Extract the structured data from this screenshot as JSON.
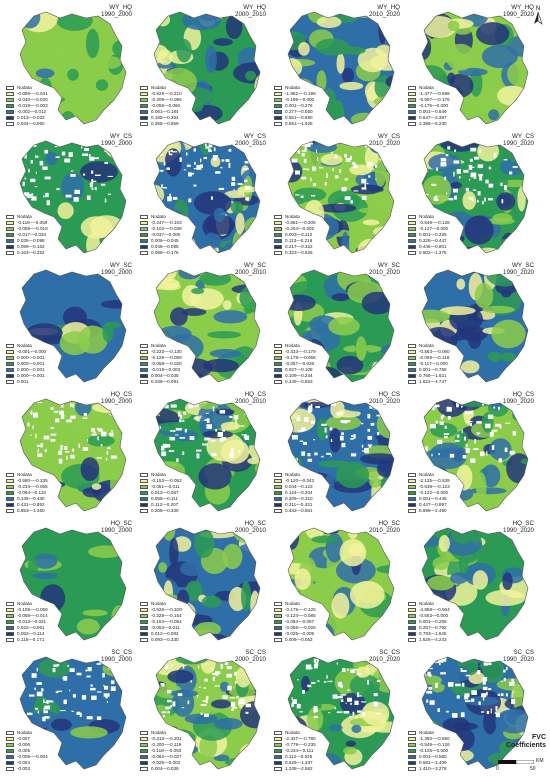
{
  "north_label": "N",
  "fvc_title": "FVC\nCoefficients",
  "scale": {
    "unit": "KM",
    "zero": "0",
    "max": "50"
  },
  "palette": [
    "#ffffff",
    "#f2f29e",
    "#8ccc4b",
    "#2b9a55",
    "#2f6fa8",
    "#23357a"
  ],
  "panels": [
    {
      "name": "WY_HQ",
      "period": "1990_2000",
      "legend": [
        "Nodata",
        "-0.096—-0.041",
        "-0.040—-0.020",
        "-0.019—-0.003",
        "-0.002—0.012",
        "0.013—0.033",
        "0.034—0.060"
      ]
    },
    {
      "name": "WY_HQ",
      "period": "2000_2010",
      "legend": [
        "Nodata",
        "-0.828—-0.210",
        "-0.209—-0.056",
        "-0.055—0.060",
        "0.061—0.184",
        "0.185—0.354",
        "0.355—0.859"
      ]
    },
    {
      "name": "WY_HQ",
      "period": "2010_2020",
      "legend": [
        "Nodata",
        "-1.962—-0.196",
        "-0.195—0.000",
        "0.001—0.276",
        "0.277—0.550",
        "0.551—0.890",
        "0.891—1.928"
      ]
    },
    {
      "name": "WY_HQ",
      "period": "1990_2020",
      "legend": [
        "Nodata",
        "-1.477—-0.598",
        "-0.597—-0.176",
        "-0.175—0.000",
        "0.001—0.646",
        "0.647—2.397",
        "2.398—6.230"
      ]
    },
    {
      "name": "WY_CS",
      "period": "1990_2000",
      "legend": [
        "Nodata",
        "-0.116—-0.059",
        "-0.058—-0.018",
        "-0.017—0.034",
        "0.035—0.098",
        "0.099—0.162",
        "0.163—0.252"
      ]
    },
    {
      "name": "WY_CS",
      "period": "2000_2010",
      "legend": [
        "Nodata",
        "-0.247—-0.103",
        "-0.102—-0.038",
        "-0.037—0.005",
        "0.006—0.045",
        "0.046—0.095",
        "0.096—0.176"
      ]
    },
    {
      "name": "WY_CS",
      "period": "2010_2020",
      "legend": [
        "Nodata",
        "-0.861—-0.205",
        "-0.204—0.002",
        "0.003—0.112",
        "0.113—0.216",
        "0.217—0.322",
        "0.323—0.626"
      ]
    },
    {
      "name": "WY_CS",
      "period": "1990_2020",
      "legend": [
        "Nodata",
        "-0.649—-0.128",
        "-0.127—0.000",
        "0.001—0.225",
        "0.226—0.447",
        "0.448—0.801",
        "0.802—1.375"
      ]
    },
    {
      "name": "WY_SC",
      "period": "1990_2000",
      "legend": [
        "Nodata",
        "-0.001—0.000",
        "0.000—0.001",
        "0.000—0.001",
        "0.000—0.001",
        "0.000—0.001",
        "0.001"
      ]
    },
    {
      "name": "WY_SC",
      "period": "2000_2010",
      "legend": [
        "Nodata",
        "-0.223—-0.130",
        "-0.129—-0.059",
        "-0.058—-0.020",
        "-0.019—0.003",
        "0.004—0.035",
        "0.036—0.091"
      ]
    },
    {
      "name": "WY_SC",
      "period": "2010_2020",
      "legend": [
        "Nodata",
        "-0.433—-0.179",
        "-0.178—-0.058",
        "-0.057—0.026",
        "0.027—0.108",
        "0.109—0.244",
        "0.245—0.553"
      ]
    },
    {
      "name": "WY_SC",
      "period": "1990_2020",
      "legend": [
        "Nodata",
        "-0.563—-0.060",
        "-0.059—-0.118",
        "-0.117—0.000",
        "0.001—0.765",
        "0.766—1.621",
        "1.622—4.747"
      ]
    },
    {
      "name": "HQ_CS",
      "period": "1990_2000",
      "legend": [
        "Nodata",
        "-0.680—-0.235",
        "-0.234—-0.065",
        "-0.064—0.134",
        "0.135—0.430",
        "0.431—0.852",
        "0.853—1.460"
      ]
    },
    {
      "name": "HQ_CS",
      "period": "2000_2010",
      "legend": [
        "Nodata",
        "-0.153—-0.052",
        "-0.051—0.011",
        "0.012—0.057",
        "0.058—0.111",
        "0.112—0.207",
        "0.208—0.330"
      ]
    },
    {
      "name": "HQ_CS",
      "period": "2010_2020",
      "legend": [
        "Nodata",
        "-0.120—0.043",
        "0.044—0.123",
        "0.124—0.204",
        "0.205—0.310",
        "0.311—0.431",
        "0.432—0.561"
      ]
    },
    {
      "name": "HQ_CS",
      "period": "1990_2020",
      "legend": [
        "Nodata",
        "-2.135—-0.539",
        "-0.538—-0.123",
        "-0.122—0.000",
        "0.001—0.446",
        "0.447—0.897",
        "0.898—2.490"
      ]
    },
    {
      "name": "HQ_SC",
      "period": "1990_2000",
      "legend": [
        "Nodata",
        "-0.105—-0.059",
        "-0.058—-0.014",
        "-0.013—0.021",
        "0.022—0.061",
        "0.062—0.114",
        "0.115—0.171"
      ]
    },
    {
      "name": "HQ_SC",
      "period": "2000_2010",
      "legend": [
        "Nodata",
        "-0.625—-0.329",
        "-0.328—-0.154",
        "-0.153—-0.054",
        "-0.053—0.011",
        "0.012—0.092",
        "0.093—0.330"
      ]
    },
    {
      "name": "HQ_SC",
      "period": "2010_2020",
      "legend": [
        "Nodata",
        "-0.175—-0.125",
        "-0.124—-0.085",
        "-0.084—0.057",
        "-0.056—-0.026",
        "-0.025—0.005",
        "0.006—0.052"
      ]
    },
    {
      "name": "HQ_SC",
      "period": "1990_2020",
      "legend": [
        "Nodata",
        "-4.858—-0.564",
        "-0.563—0.000",
        "0.001—0.256",
        "0.257—0.792",
        "0.793—1.625",
        "1.626—4.243"
      ]
    },
    {
      "name": "SC_CS",
      "period": "1990_2000",
      "legend": [
        "Nodata",
        "-0.007",
        "-0.006",
        "-0.005",
        "-0.005—-0.004",
        "-0.004",
        "-0.003"
      ]
    },
    {
      "name": "SC_CS",
      "period": "2000_2010",
      "legend": [
        "Nodata",
        "-0.313—-0.201",
        "-0.200—-0.119",
        "-0.118—-0.063",
        "-0.062—-0.027",
        "-0.026—0.003",
        "0.004—0.039"
      ]
    },
    {
      "name": "SC_CS",
      "period": "2010_2020",
      "legend": [
        "Nodata",
        "-2.327—-0.780",
        "-0.779—-0.235",
        "-0.234—0.111",
        "0.112—0.525",
        "0.526—1.337",
        "1.338—2.582"
      ]
    },
    {
      "name": "SC_CS",
      "period": "1990_2020",
      "legend": [
        "Nodata",
        "-1.350—-0.550",
        "-0.549—-0.126",
        "-0.125—0.000",
        "0.001—0.580",
        "0.581—1.409",
        "1.410—3.278"
      ]
    }
  ]
}
